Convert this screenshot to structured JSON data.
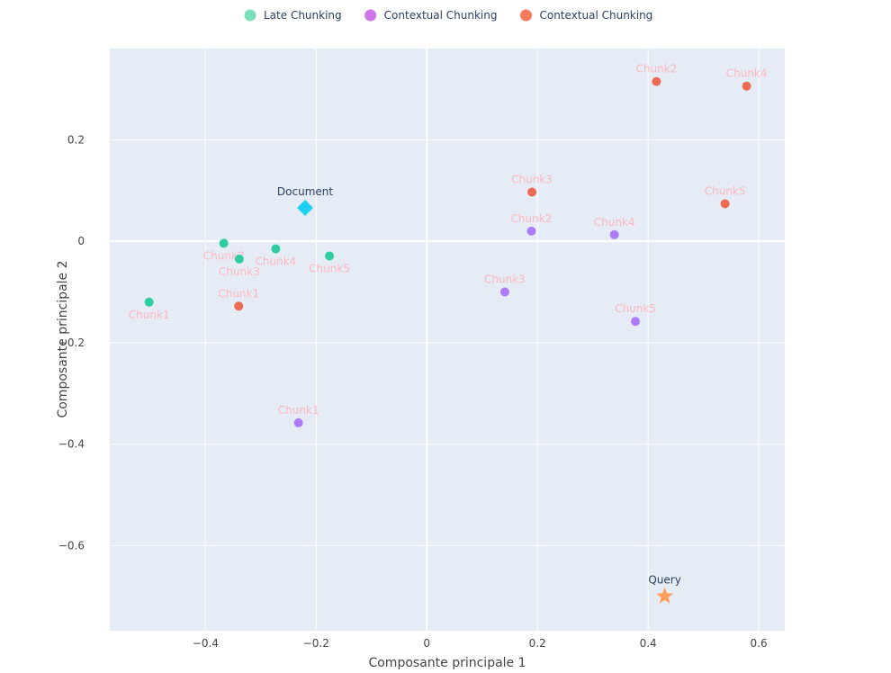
{
  "chart_data": {
    "type": "scatter",
    "xlabel": "Composante principale 1",
    "ylabel": "Composante principale 2",
    "xlim": [
      -0.573,
      0.647
    ],
    "ylim": [
      -0.768,
      0.38
    ],
    "x_ticks": [
      -0.4,
      -0.2,
      0,
      0.2,
      0.4,
      0.6
    ],
    "x_tick_labels": [
      "−0.4",
      "−0.2",
      "0",
      "0.2",
      "0.4",
      "0.6"
    ],
    "y_ticks": [
      0.2,
      0,
      -0.2,
      -0.4,
      -0.6
    ],
    "y_tick_labels": [
      "0.2",
      "0",
      "−0.2",
      "−0.4",
      "−0.6"
    ],
    "grid": true,
    "legend_position": "top",
    "series": [
      {
        "name": "Late Chunking",
        "color": "#2ecc9e",
        "legend_color": "#7ddfb9",
        "label_color": "#ffb6c1",
        "points": [
          {
            "label": "Chunk1",
            "x": -0.502,
            "y": -0.12,
            "label_pos": "below"
          },
          {
            "label": "Chunk2",
            "x": -0.367,
            "y": -0.004,
            "label_pos": "below"
          },
          {
            "label": "Chunk3",
            "x": -0.339,
            "y": -0.035,
            "label_pos": "below"
          },
          {
            "label": "Chunk4",
            "x": -0.273,
            "y": -0.015,
            "label_pos": "below"
          },
          {
            "label": "Chunk5",
            "x": -0.176,
            "y": -0.029,
            "label_pos": "below"
          }
        ]
      },
      {
        "name": "Contextual Chunking",
        "color": "#ad7cf6",
        "legend_color": "#cc76e8",
        "label_color": "#ffb6c1",
        "points": [
          {
            "label": "Chunk1",
            "x": -0.232,
            "y": -0.358,
            "label_pos": "above"
          },
          {
            "label": "Chunk2",
            "x": 0.189,
            "y": 0.02,
            "label_pos": "above"
          },
          {
            "label": "Chunk3",
            "x": 0.141,
            "y": -0.1,
            "label_pos": "above"
          },
          {
            "label": "Chunk4",
            "x": 0.339,
            "y": 0.013,
            "label_pos": "above"
          },
          {
            "label": "Chunk5",
            "x": 0.377,
            "y": -0.158,
            "label_pos": "above"
          }
        ]
      },
      {
        "name": "Contextual Chunking",
        "color": "#ee6a52",
        "legend_color": "#f47a5e",
        "label_color": "#ffb6c1",
        "points": [
          {
            "label": "Chunk1",
            "x": -0.34,
            "y": -0.128,
            "label_pos": "above"
          },
          {
            "label": "Chunk2",
            "x": 0.415,
            "y": 0.315,
            "label_pos": "above"
          },
          {
            "label": "Chunk3",
            "x": 0.19,
            "y": 0.097,
            "label_pos": "above"
          },
          {
            "label": "Chunk4",
            "x": 0.578,
            "y": 0.306,
            "label_pos": "above"
          },
          {
            "label": "Chunk5",
            "x": 0.539,
            "y": 0.074,
            "label_pos": "above"
          }
        ]
      }
    ],
    "special_points": [
      {
        "label": "Document",
        "x": -0.22,
        "y": 0.066,
        "shape": "diamond",
        "color": "#1fd0f0",
        "label_color": "#2a3f5f"
      },
      {
        "label": "Query",
        "x": 0.43,
        "y": -0.7,
        "shape": "star",
        "color": "#ff9f5a",
        "label_color": "#2a3f5f"
      }
    ]
  }
}
